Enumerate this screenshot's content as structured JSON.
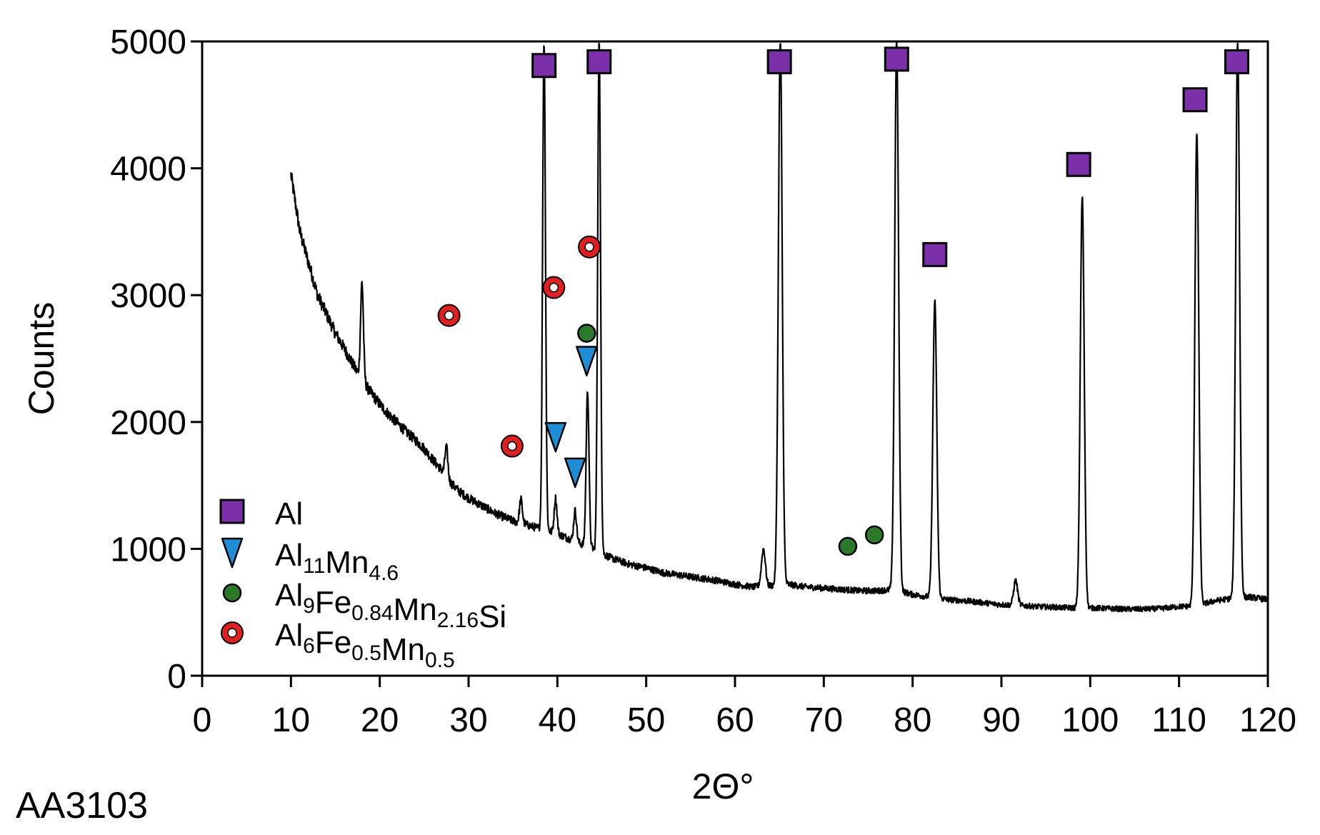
{
  "chart_data": {
    "type": "line",
    "title": "",
    "sample_label": "AA3103",
    "xlabel": "2Θ°",
    "ylabel": "Counts",
    "xlim": [
      0,
      120
    ],
    "ylim": [
      0,
      5000
    ],
    "xticks": [
      0,
      10,
      20,
      30,
      40,
      50,
      60,
      70,
      80,
      90,
      100,
      110,
      120
    ],
    "yticks": [
      0,
      1000,
      2000,
      3000,
      4000,
      5000
    ],
    "grid": false,
    "legend_position": "bottom-left",
    "series": [
      {
        "kind": "spectrum",
        "color": "#000000",
        "baseline": [
          [
            10,
            3950
          ],
          [
            11,
            3500
          ],
          [
            12,
            3250
          ],
          [
            13,
            3000
          ],
          [
            14,
            2850
          ],
          [
            15,
            2700
          ],
          [
            16,
            2580
          ],
          [
            17,
            2450
          ],
          [
            18,
            2330
          ],
          [
            19,
            2230
          ],
          [
            20,
            2140
          ],
          [
            21,
            2060
          ],
          [
            22,
            1990
          ],
          [
            23,
            1920
          ],
          [
            24,
            1860
          ],
          [
            25,
            1790
          ],
          [
            26,
            1700
          ],
          [
            27,
            1620
          ],
          [
            28,
            1520
          ],
          [
            29,
            1450
          ],
          [
            30,
            1400
          ],
          [
            31,
            1360
          ],
          [
            32,
            1320
          ],
          [
            33,
            1280
          ],
          [
            34,
            1250
          ],
          [
            35,
            1220
          ],
          [
            36,
            1200
          ],
          [
            37,
            1180
          ],
          [
            38,
            1160
          ],
          [
            40,
            1120
          ],
          [
            42,
            1060
          ],
          [
            44,
            1000
          ],
          [
            46,
            930
          ],
          [
            48,
            880
          ],
          [
            50,
            850
          ],
          [
            52,
            810
          ],
          [
            54,
            790
          ],
          [
            56,
            770
          ],
          [
            58,
            750
          ],
          [
            60,
            720
          ],
          [
            62,
            700
          ],
          [
            64,
            710
          ],
          [
            66,
            720
          ],
          [
            68,
            700
          ],
          [
            70,
            690
          ],
          [
            72,
            680
          ],
          [
            74,
            670
          ],
          [
            76,
            670
          ],
          [
            78,
            680
          ],
          [
            80,
            640
          ],
          [
            82,
            620
          ],
          [
            84,
            600
          ],
          [
            86,
            590
          ],
          [
            88,
            575
          ],
          [
            90,
            560
          ],
          [
            92,
            555
          ],
          [
            94,
            545
          ],
          [
            96,
            540
          ],
          [
            98,
            535
          ],
          [
            100,
            535
          ],
          [
            102,
            530
          ],
          [
            104,
            525
          ],
          [
            106,
            525
          ],
          [
            108,
            530
          ],
          [
            110,
            545
          ],
          [
            112,
            550
          ],
          [
            114,
            590
          ],
          [
            116,
            610
          ],
          [
            118,
            620
          ],
          [
            120,
            600
          ]
        ],
        "peaks": [
          [
            18.0,
            3100
          ],
          [
            27.5,
            1800
          ],
          [
            35.9,
            1390
          ],
          [
            38.5,
            5000
          ],
          [
            39.8,
            1400
          ],
          [
            42.0,
            1300
          ],
          [
            43.4,
            2250
          ],
          [
            44.7,
            5000
          ],
          [
            63.2,
            1000
          ],
          [
            65.1,
            5000
          ],
          [
            78.2,
            5000
          ],
          [
            82.5,
            2950
          ],
          [
            91.6,
            750
          ],
          [
            99.1,
            3780
          ],
          [
            112.0,
            4270
          ],
          [
            116.6,
            5000
          ]
        ]
      }
    ],
    "phases": [
      {
        "name": "Al",
        "sub": "",
        "marker": "square",
        "color": "#7b2fa8",
        "points": [
          [
            38.5,
            4810
          ],
          [
            44.7,
            4840
          ],
          [
            65.0,
            4840
          ],
          [
            78.2,
            4860
          ],
          [
            82.5,
            3320
          ],
          [
            98.7,
            4030
          ],
          [
            111.8,
            4540
          ],
          [
            116.5,
            4840
          ]
        ]
      },
      {
        "name": "Al",
        "sub": "11",
        "name2": "Mn",
        "sub2": "4.6",
        "marker": "triangle-down",
        "color": "#1f8dd6",
        "points": [
          [
            43.3,
            2480
          ],
          [
            39.8,
            1880
          ],
          [
            42.0,
            1600
          ]
        ]
      },
      {
        "name": "Al",
        "sub": "9",
        "name2": "Fe",
        "sub2": "0.84",
        "name3": "Mn",
        "sub3": "2.16",
        "name4": "Si",
        "marker": "circle",
        "color": "#2a7a2a",
        "points": [
          [
            43.3,
            2700
          ],
          [
            72.7,
            1020
          ],
          [
            75.7,
            1110
          ]
        ]
      },
      {
        "name": "Al",
        "sub": "6",
        "name2": "Fe",
        "sub2": "0.5",
        "name3": "Mn",
        "sub3": "0.5",
        "marker": "ring",
        "color": "#e02020",
        "points": [
          [
            27.8,
            2840
          ],
          [
            39.6,
            3060
          ],
          [
            43.6,
            3380
          ],
          [
            34.9,
            1810
          ]
        ]
      }
    ]
  }
}
